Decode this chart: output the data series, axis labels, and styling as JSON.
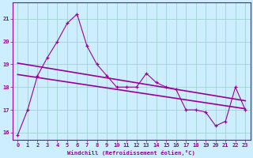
{
  "x": [
    0,
    1,
    2,
    3,
    4,
    5,
    6,
    7,
    8,
    9,
    10,
    11,
    12,
    13,
    14,
    15,
    16,
    17,
    18,
    19,
    20,
    21,
    22,
    23
  ],
  "y_main": [
    15.9,
    17.0,
    18.5,
    19.3,
    20.0,
    20.8,
    21.2,
    19.8,
    19.0,
    18.5,
    18.0,
    18.0,
    18.0,
    18.6,
    18.2,
    18.0,
    17.9,
    17.0,
    17.0,
    16.9,
    16.3,
    16.5,
    18.0,
    17.0
  ],
  "line_color": "#990099",
  "bg_color": "#cceeff",
  "grid_color": "#99cccc",
  "xlabel": "Windchill (Refroidissement éolien,°C)",
  "ylim": [
    15.7,
    21.7
  ],
  "xlim": [
    -0.5,
    23.5
  ],
  "yticks": [
    16,
    17,
    18,
    19,
    20,
    21
  ],
  "xticks": [
    0,
    1,
    2,
    3,
    4,
    5,
    6,
    7,
    8,
    9,
    10,
    11,
    12,
    13,
    14,
    15,
    16,
    17,
    18,
    19,
    20,
    21,
    22,
    23
  ],
  "trend1_start": 18.55,
  "trend1_end": 17.05,
  "trend2_start": 19.05,
  "trend2_end": 17.4
}
